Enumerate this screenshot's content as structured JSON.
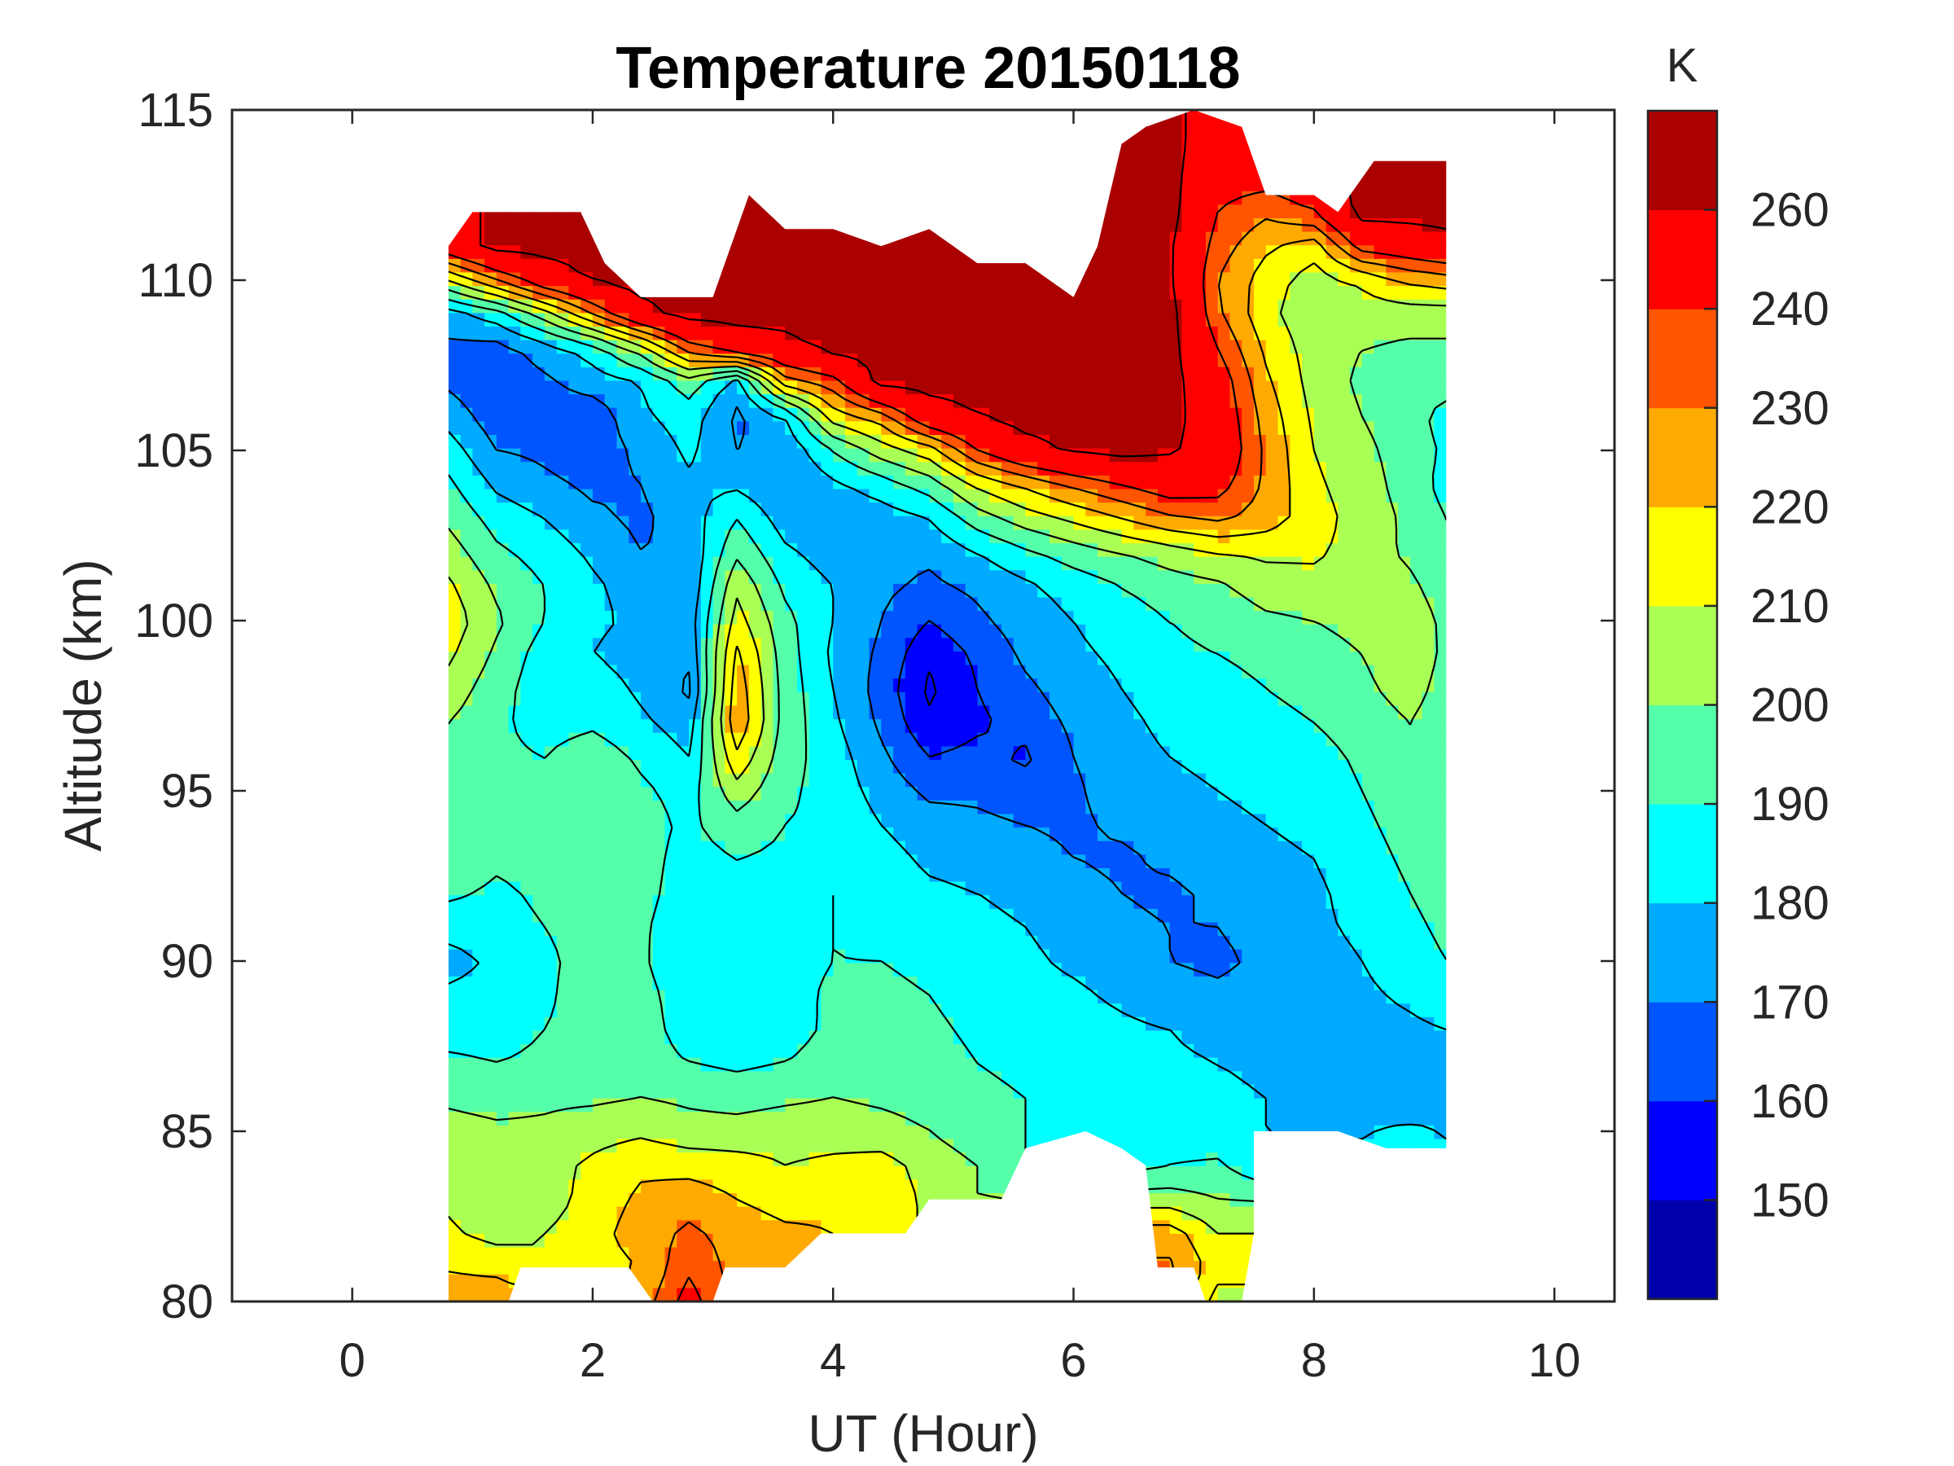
{
  "chart_data": {
    "type": "heatmap",
    "subtype": "filled-contour",
    "title": "Temperature 20150118",
    "xlabel": "UT (Hour)",
    "ylabel": "Altitude (km)",
    "xlim": [
      -1,
      10.5
    ],
    "ylim": [
      80,
      115
    ],
    "xticks": [
      0,
      2,
      4,
      6,
      8,
      10
    ],
    "xtick_labels": [
      "0",
      "2",
      "4",
      "6",
      "8",
      "10"
    ],
    "yticks": [
      80,
      85,
      90,
      95,
      100,
      105,
      110,
      115
    ],
    "ytick_labels": [
      "80",
      "85",
      "90",
      "95",
      "100",
      "105",
      "110",
      "115"
    ],
    "colorbar": {
      "label": "K",
      "tick_labels": [
        "260",
        "240",
        "230",
        "220",
        "210",
        "200",
        "190",
        "180",
        "170",
        "160",
        "150"
      ],
      "levels": [
        150,
        160,
        170,
        180,
        190,
        200,
        210,
        220,
        230,
        240,
        260
      ],
      "colors": [
        "#0000AA",
        "#0000FF",
        "#0055FF",
        "#00AAFF",
        "#00FFFF",
        "#55FFAA",
        "#AAFF55",
        "#FFFF00",
        "#FFAA00",
        "#FF5500",
        "#FF0000",
        "#AA0000"
      ]
    },
    "grid": false,
    "x": [
      0.8,
      1.2,
      1.6,
      2.0,
      2.4,
      2.8,
      3.2,
      3.6,
      4.0,
      4.4,
      4.8,
      5.2,
      5.6,
      6.0,
      6.4,
      6.8,
      7.2,
      7.6,
      8.0,
      8.4,
      8.8,
      9.1
    ],
    "y": [
      115,
      114,
      113,
      112,
      111,
      110,
      109,
      108,
      107,
      106,
      105,
      104,
      103,
      102,
      101,
      100,
      99,
      98,
      97,
      96,
      95,
      94,
      93,
      92,
      91,
      90,
      89,
      88,
      87,
      86,
      85,
      84,
      83,
      82,
      81,
      80
    ],
    "values": [
      [
        null,
        null,
        null,
        null,
        null,
        null,
        null,
        null,
        null,
        null,
        null,
        null,
        null,
        null,
        null,
        265,
        null,
        null,
        null,
        null,
        null,
        null
      ],
      [
        null,
        null,
        null,
        null,
        null,
        null,
        null,
        null,
        null,
        null,
        null,
        null,
        null,
        null,
        265,
        265,
        250,
        null,
        null,
        null,
        null,
        null
      ],
      [
        null,
        null,
        null,
        null,
        null,
        null,
        null,
        null,
        null,
        null,
        null,
        null,
        null,
        null,
        265,
        265,
        245,
        245,
        250,
        null,
        265,
        265
      ],
      [
        null,
        null,
        null,
        null,
        null,
        null,
        265,
        265,
        null,
        null,
        null,
        null,
        null,
        null,
        265,
        265,
        240,
        232,
        240,
        265,
        265,
        265
      ],
      [
        250,
        265,
        265,
        265,
        null,
        null,
        265,
        265,
        265,
        265,
        265,
        265,
        265,
        265,
        265,
        262,
        235,
        222,
        215,
        245,
        250,
        255
      ],
      [
        210,
        230,
        250,
        262,
        265,
        265,
        265,
        265,
        265,
        265,
        265,
        265,
        265,
        265,
        265,
        262,
        230,
        215,
        205,
        212,
        222,
        225
      ],
      [
        175,
        185,
        205,
        230,
        255,
        265,
        265,
        265,
        265,
        265,
        265,
        265,
        265,
        265,
        265,
        265,
        232,
        213,
        203,
        205,
        205,
        205
      ],
      [
        168,
        166,
        175,
        185,
        205,
        235,
        250,
        255,
        265,
        265,
        265,
        265,
        265,
        265,
        265,
        265,
        240,
        218,
        205,
        200,
        198,
        198
      ],
      [
        168,
        162,
        168,
        175,
        180,
        195,
        175,
        225,
        235,
        265,
        265,
        265,
        265,
        265,
        265,
        265,
        248,
        222,
        206,
        198,
        196,
        196
      ],
      [
        176,
        164,
        165,
        163,
        178,
        185,
        168,
        180,
        215,
        225,
        252,
        260,
        265,
        265,
        265,
        265,
        250,
        226,
        208,
        200,
        195,
        185
      ],
      [
        185,
        170,
        168,
        165,
        172,
        182,
        170,
        172,
        190,
        205,
        215,
        240,
        255,
        262,
        265,
        262,
        252,
        228,
        210,
        202,
        196,
        188
      ],
      [
        192,
        178,
        172,
        168,
        170,
        178,
        178,
        170,
        178,
        185,
        195,
        212,
        222,
        232,
        240,
        248,
        245,
        228,
        212,
        204,
        196,
        186
      ],
      [
        198,
        186,
        180,
        172,
        168,
        175,
        190,
        175,
        172,
        175,
        180,
        195,
        205,
        212,
        220,
        228,
        232,
        225,
        215,
        205,
        198,
        190
      ],
      [
        205,
        192,
        186,
        178,
        170,
        172,
        198,
        182,
        175,
        172,
        172,
        180,
        188,
        195,
        200,
        205,
        210,
        212,
        212,
        205,
        198,
        192
      ],
      [
        212,
        198,
        190,
        182,
        175,
        172,
        208,
        188,
        180,
        172,
        168,
        172,
        178,
        184,
        190,
        195,
        198,
        205,
        206,
        205,
        202,
        195
      ],
      [
        216,
        202,
        190,
        182,
        178,
        175,
        214,
        193,
        180,
        170,
        160,
        168,
        175,
        180,
        185,
        190,
        193,
        198,
        200,
        203,
        205,
        198
      ],
      [
        212,
        198,
        185,
        180,
        175,
        172,
        222,
        195,
        178,
        168,
        152,
        162,
        172,
        178,
        182,
        188,
        190,
        193,
        196,
        200,
        206,
        198
      ],
      [
        206,
        194,
        184,
        186,
        178,
        168,
        226,
        196,
        180,
        166,
        148,
        160,
        168,
        175,
        180,
        184,
        186,
        190,
        194,
        198,
        204,
        196
      ],
      [
        200,
        192,
        186,
        188,
        182,
        175,
        228,
        196,
        182,
        168,
        152,
        158,
        164,
        172,
        178,
        182,
        184,
        186,
        190,
        195,
        200,
        194
      ],
      [
        196,
        192,
        190,
        196,
        188,
        180,
        218,
        194,
        185,
        172,
        160,
        163,
        158,
        170,
        177,
        180,
        182,
        184,
        186,
        192,
        198,
        195
      ],
      [
        198,
        195,
        192,
        200,
        192,
        186,
        206,
        192,
        186,
        176,
        168,
        168,
        165,
        168,
        176,
        178,
        180,
        182,
        184,
        190,
        196,
        194
      ],
      [
        200,
        194,
        196,
        198,
        194,
        188,
        196,
        190,
        188,
        180,
        174,
        172,
        170,
        168,
        172,
        176,
        178,
        180,
        182,
        188,
        194,
        194
      ],
      [
        198,
        192,
        194,
        196,
        194,
        186,
        190,
        188,
        188,
        184,
        178,
        176,
        174,
        170,
        168,
        172,
        176,
        178,
        180,
        186,
        192,
        196
      ],
      [
        192,
        188,
        192,
        196,
        194,
        184,
        186,
        188,
        190,
        186,
        182,
        180,
        178,
        174,
        170,
        168,
        172,
        176,
        178,
        184,
        190,
        194
      ],
      [
        184,
        186,
        190,
        194,
        192,
        182,
        184,
        188,
        190,
        188,
        186,
        182,
        180,
        176,
        172,
        170,
        170,
        174,
        178,
        182,
        188,
        192
      ],
      [
        176,
        182,
        188,
        194,
        192,
        180,
        182,
        186,
        190,
        190,
        188,
        184,
        182,
        178,
        174,
        170,
        168,
        172,
        176,
        180,
        186,
        190
      ],
      [
        182,
        184,
        188,
        196,
        194,
        184,
        180,
        186,
        192,
        192,
        190,
        186,
        184,
        182,
        178,
        174,
        172,
        174,
        176,
        178,
        182,
        186
      ],
      [
        186,
        186,
        190,
        194,
        194,
        186,
        182,
        186,
        192,
        194,
        192,
        188,
        186,
        184,
        182,
        180,
        176,
        176,
        176,
        176,
        178,
        180
      ],
      [
        192,
        190,
        192,
        194,
        194,
        190,
        188,
        190,
        194,
        196,
        194,
        190,
        188,
        186,
        184,
        182,
        180,
        178,
        176,
        174,
        174,
        176
      ],
      [
        198,
        196,
        198,
        198,
        200,
        198,
        196,
        198,
        200,
        198,
        196,
        192,
        190,
        188,
        186,
        184,
        182,
        180,
        178,
        176,
        172,
        176
      ],
      [
        204,
        202,
        202,
        206,
        208,
        204,
        204,
        206,
        206,
        204,
        200,
        194,
        190,
        188,
        186,
        184,
        182,
        180,
        180,
        180,
        182,
        180
      ],
      [
        206,
        202,
        206,
        212,
        218,
        216,
        214,
        210,
        212,
        214,
        206,
        200,
        null,
        null,
        null,
        190,
        192,
        null,
        null,
        null,
        null,
        null
      ],
      [
        208,
        200,
        205,
        214,
        222,
        226,
        220,
        216,
        218,
        216,
        208,
        null,
        null,
        null,
        null,
        205,
        200,
        null,
        null,
        null,
        null,
        null
      ],
      [
        212,
        206,
        210,
        216,
        225,
        232,
        226,
        222,
        220,
        null,
        null,
        null,
        null,
        null,
        null,
        225,
        210,
        null,
        null,
        null,
        null,
        null
      ],
      [
        220,
        218,
        null,
        null,
        220,
        238,
        226,
        null,
        null,
        null,
        null,
        null,
        null,
        null,
        null,
        232,
        215,
        null,
        null,
        null,
        null,
        null
      ],
      [
        222,
        225,
        null,
        null,
        224,
        245,
        null,
        null,
        null,
        null,
        null,
        null,
        null,
        null,
        null,
        null,
        205,
        null,
        null,
        null,
        null,
        null
      ]
    ],
    "data_extent": {
      "x_range": [
        0.8,
        9.1
      ],
      "top_km": [
        [
          0.8,
          111
        ],
        [
          1.0,
          112
        ],
        [
          1.9,
          112
        ],
        [
          2.1,
          110.5
        ],
        [
          2.4,
          109.5
        ],
        [
          3.0,
          109.5
        ],
        [
          3.3,
          112.5
        ],
        [
          3.6,
          111.5
        ],
        [
          4.0,
          111.5
        ],
        [
          4.4,
          111
        ],
        [
          4.8,
          111.5
        ],
        [
          5.2,
          110.5
        ],
        [
          5.6,
          110.5
        ],
        [
          6.0,
          109.5
        ],
        [
          6.2,
          111
        ],
        [
          6.4,
          114
        ],
        [
          6.6,
          114.5
        ],
        [
          7.0,
          115
        ],
        [
          7.4,
          114.5
        ],
        [
          7.6,
          112.5
        ],
        [
          8.0,
          112.5
        ],
        [
          8.2,
          112
        ],
        [
          8.5,
          113.5
        ],
        [
          9.1,
          113.5
        ]
      ],
      "bottom_km": [
        [
          0.8,
          80
        ],
        [
          1.3,
          80
        ],
        [
          1.4,
          81
        ],
        [
          2.3,
          81
        ],
        [
          2.5,
          80
        ],
        [
          3.0,
          80
        ],
        [
          3.1,
          81
        ],
        [
          3.6,
          81
        ],
        [
          3.9,
          82
        ],
        [
          4.6,
          82
        ],
        [
          4.8,
          83
        ],
        [
          5.4,
          83
        ],
        [
          5.6,
          84.5
        ],
        [
          6.1,
          85
        ],
        [
          6.4,
          84.5
        ],
        [
          6.6,
          84
        ],
        [
          6.7,
          81
        ],
        [
          7.0,
          81
        ],
        [
          7.1,
          80
        ],
        [
          7.4,
          80
        ],
        [
          7.5,
          82
        ],
        [
          7.5,
          85
        ],
        [
          8.2,
          85
        ],
        [
          8.6,
          84.5
        ],
        [
          9.1,
          84.5
        ]
      ]
    }
  }
}
